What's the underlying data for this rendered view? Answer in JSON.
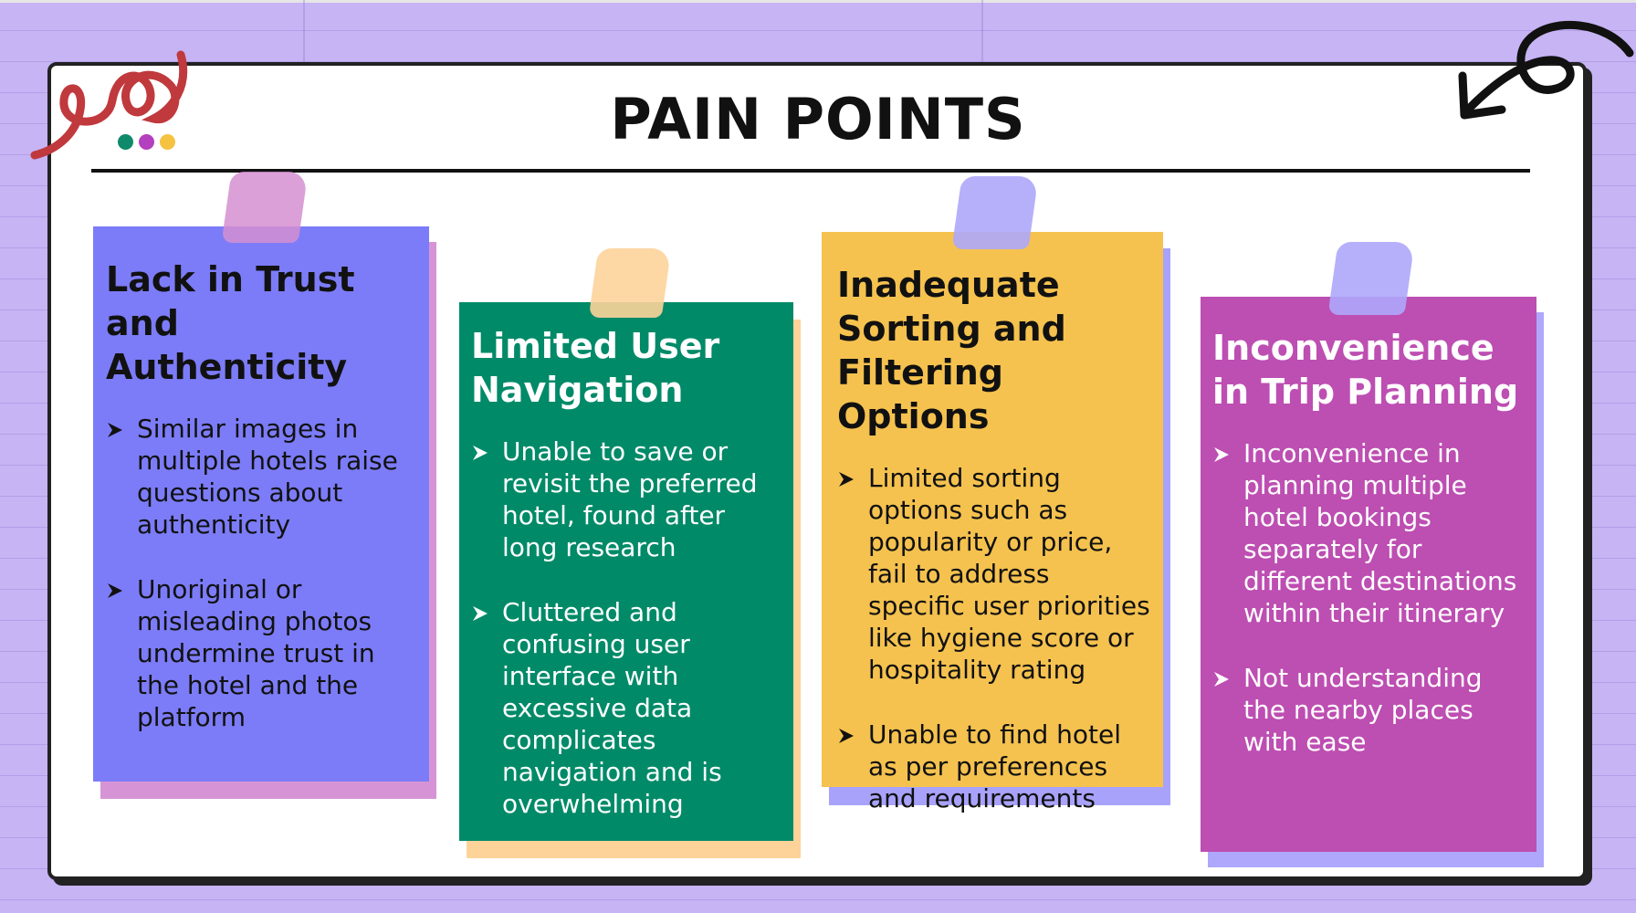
{
  "title": "PAIN POINTS",
  "colors": {
    "background": "#c6b4f4",
    "frame": "#ffffff",
    "dots": [
      "#0f8a6a",
      "#b43fbf",
      "#f5c241"
    ]
  },
  "decorations": [
    "squiggle-icon",
    "curved-arrow-icon",
    "three-dots-icon"
  ],
  "cards": [
    {
      "title": "Lack in Trust and Authenticity",
      "color": "#7c7cf8",
      "shadow_color": "#d694d6",
      "tape_color": "#d58fd1",
      "points": [
        "Similar images in multiple hotels raise questions about authenticity",
        "Unoriginal or misleading photos undermine trust in the hotel and the platform"
      ]
    },
    {
      "title": "Limited User Navigation",
      "color": "#008a68",
      "shadow_color": "#fdd39a",
      "tape_color": "#fdd39a",
      "points": [
        "Unable to save or revisit the preferred hotel, found after long research",
        "Cluttered and confusing user interface with excessive data complicates navigation and is overwhelming"
      ]
    },
    {
      "title": "Inadequate Sorting and Filtering Options",
      "color": "#f5c24f",
      "shadow_color": "#a8a2fb",
      "tape_color": "#aea7fb",
      "points": [
        "Limited sorting options such as popularity or price, fail to address specific user priorities like hygiene score or hospitality rating",
        "Unable to find hotel as per preferences and requirements"
      ]
    },
    {
      "title": "Inconvenience in Trip Planning",
      "color": "#bd4eb2",
      "shadow_color": "#aea7fb",
      "tape_color": "#aea7fb",
      "points": [
        "Inconvenience in planning multiple hotel bookings separately for different destinations within their itinerary",
        "Not understanding the nearby places with ease"
      ]
    }
  ]
}
